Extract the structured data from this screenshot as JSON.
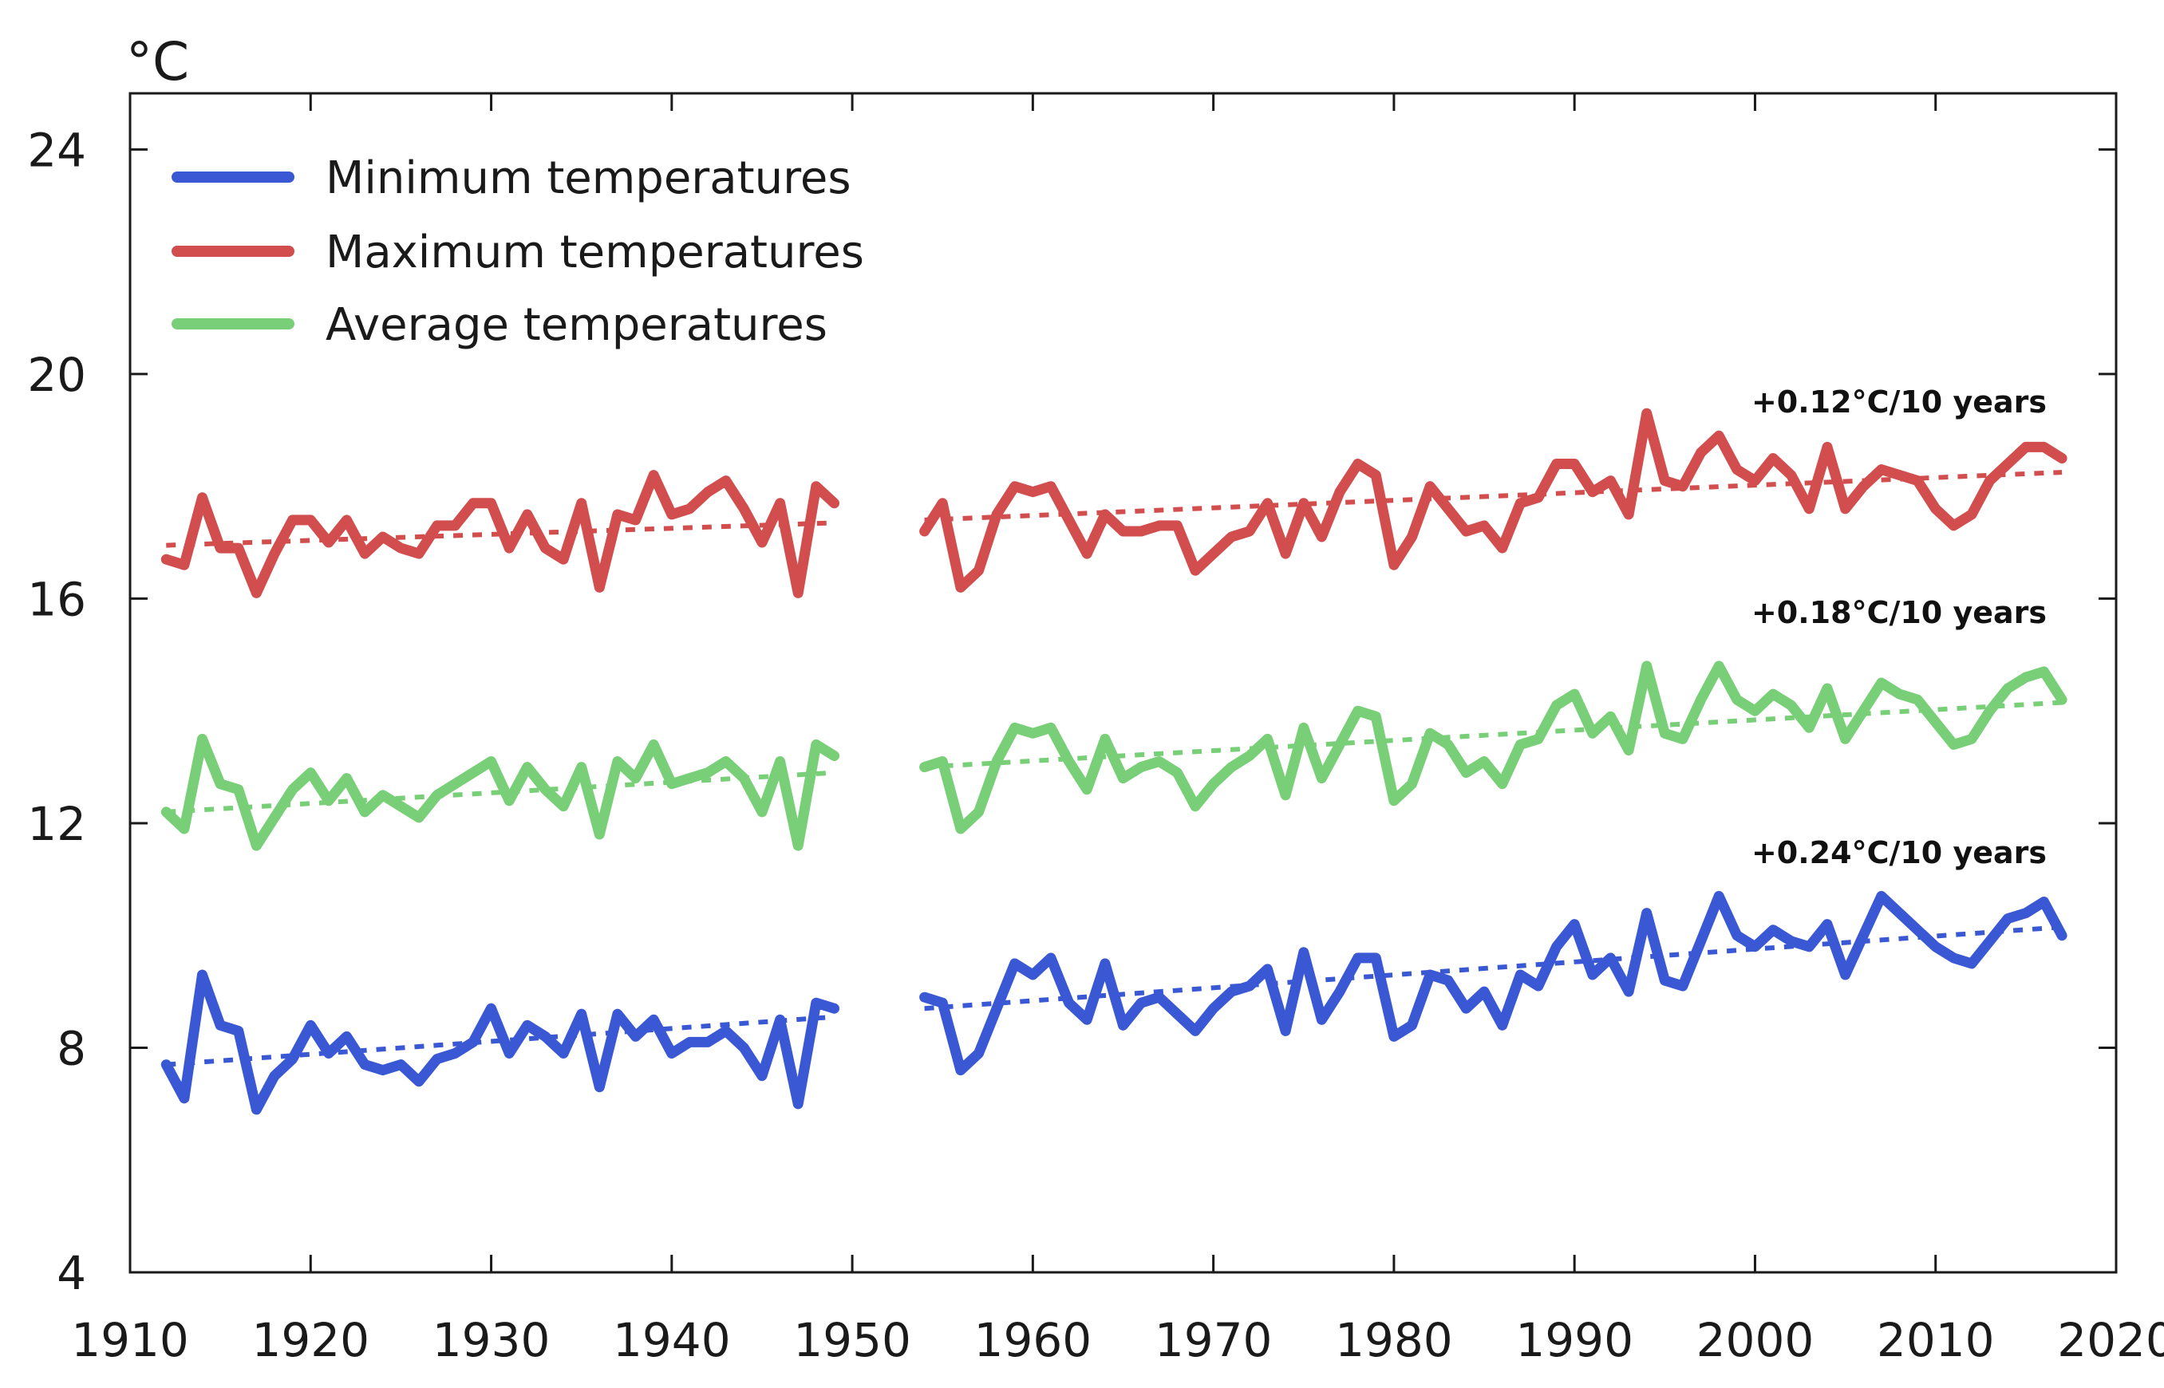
{
  "chart_data": {
    "type": "line",
    "title": "",
    "xlabel": "",
    "ylabel": "°C",
    "xlim": [
      1910,
      2020
    ],
    "ylim": [
      4,
      25
    ],
    "x_ticks": [
      1910,
      1920,
      1930,
      1940,
      1950,
      1960,
      1970,
      1980,
      1990,
      2000,
      2010,
      2020
    ],
    "y_ticks": [
      4,
      8,
      12,
      16,
      20,
      24
    ],
    "grid": false,
    "legend_position": "top-left",
    "colors": {
      "min": "#3a58d4",
      "max": "#d24d4d",
      "avg": "#78cf78"
    },
    "series": [
      {
        "key": "min",
        "name": "Minimum temperatures",
        "trend_label": "+0.24°C/10 years",
        "trend": [
          [
            1912,
            7.7
          ],
          [
            1949,
            8.55
          ],
          [
            1954,
            8.7
          ],
          [
            2017,
            10.15
          ]
        ],
        "segments": [
          {
            "x": [
              1912,
              1913,
              1914,
              1915,
              1916,
              1917,
              1918,
              1919,
              1920,
              1921,
              1922,
              1923,
              1924,
              1925,
              1926,
              1927,
              1928,
              1929,
              1930,
              1931,
              1932,
              1933,
              1934,
              1935,
              1936,
              1937,
              1938,
              1939,
              1940,
              1941,
              1942,
              1943,
              1944,
              1945,
              1946,
              1947,
              1948,
              1949
            ],
            "values": [
              7.7,
              7.1,
              9.3,
              8.4,
              8.3,
              6.9,
              7.5,
              7.8,
              8.4,
              7.9,
              8.2,
              7.7,
              7.6,
              7.7,
              7.4,
              7.8,
              7.9,
              8.1,
              8.7,
              7.9,
              8.4,
              8.2,
              7.9,
              8.6,
              7.3,
              8.6,
              8.2,
              8.5,
              7.9,
              8.1,
              8.1,
              8.3,
              8.0,
              7.5,
              8.5,
              7.0,
              8.8,
              8.7
            ]
          },
          {
            "x": [
              1954,
              1955,
              1956,
              1957,
              1958,
              1959,
              1960,
              1961,
              1962,
              1963,
              1964,
              1965,
              1966,
              1967,
              1968,
              1969,
              1970,
              1971,
              1972,
              1973,
              1974,
              1975,
              1976,
              1977,
              1978,
              1979,
              1980,
              1981,
              1982,
              1983,
              1984,
              1985,
              1986,
              1987,
              1988,
              1989,
              1990,
              1991,
              1992,
              1993,
              1994,
              1995,
              1996,
              1997,
              1998,
              1999,
              2000,
              2001,
              2002,
              2003,
              2004,
              2005,
              2006,
              2007,
              2008,
              2009,
              2010,
              2011,
              2012,
              2013,
              2014,
              2015,
              2016,
              2017
            ],
            "values": [
              8.9,
              8.8,
              7.6,
              7.9,
              8.7,
              9.5,
              9.3,
              9.6,
              8.8,
              8.5,
              9.5,
              8.4,
              8.8,
              8.9,
              8.6,
              8.3,
              8.7,
              9.0,
              9.1,
              9.4,
              8.3,
              9.7,
              8.5,
              9.0,
              9.6,
              9.6,
              8.2,
              8.4,
              9.3,
              9.2,
              8.7,
              9.0,
              8.4,
              9.3,
              9.1,
              9.8,
              10.2,
              9.3,
              9.6,
              9.0,
              10.4,
              9.2,
              9.1,
              9.9,
              10.7,
              10.0,
              9.8,
              10.1,
              9.9,
              9.8,
              10.2,
              9.3,
              10.0,
              10.7,
              10.4,
              10.1,
              9.8,
              9.6,
              9.5,
              9.9,
              10.3,
              10.4,
              10.6,
              10.0
            ]
          }
        ]
      },
      {
        "key": "max",
        "name": "Maximum temperatures",
        "trend_label": "+0.12°C/10 years",
        "trend": [
          [
            1912,
            16.95
          ],
          [
            1949,
            17.35
          ],
          [
            1954,
            17.4
          ],
          [
            2017,
            18.25
          ]
        ],
        "segments": [
          {
            "x": [
              1912,
              1913,
              1914,
              1915,
              1916,
              1917,
              1918,
              1919,
              1920,
              1921,
              1922,
              1923,
              1924,
              1925,
              1926,
              1927,
              1928,
              1929,
              1930,
              1931,
              1932,
              1933,
              1934,
              1935,
              1936,
              1937,
              1938,
              1939,
              1940,
              1941,
              1942,
              1943,
              1944,
              1945,
              1946,
              1947,
              1948,
              1949
            ],
            "values": [
              16.7,
              16.6,
              17.8,
              16.9,
              16.9,
              16.1,
              16.8,
              17.4,
              17.4,
              17.0,
              17.4,
              16.8,
              17.1,
              16.9,
              16.8,
              17.3,
              17.3,
              17.7,
              17.7,
              16.9,
              17.5,
              16.9,
              16.7,
              17.7,
              16.2,
              17.5,
              17.4,
              18.2,
              17.5,
              17.6,
              17.9,
              18.1,
              17.6,
              17.0,
              17.7,
              16.1,
              18.0,
              17.7
            ]
          },
          {
            "x": [
              1954,
              1955,
              1956,
              1957,
              1958,
              1959,
              1960,
              1961,
              1962,
              1963,
              1964,
              1965,
              1966,
              1967,
              1968,
              1969,
              1970,
              1971,
              1972,
              1973,
              1974,
              1975,
              1976,
              1977,
              1978,
              1979,
              1980,
              1981,
              1982,
              1983,
              1984,
              1985,
              1986,
              1987,
              1988,
              1989,
              1990,
              1991,
              1992,
              1993,
              1994,
              1995,
              1996,
              1997,
              1998,
              1999,
              2000,
              2001,
              2002,
              2003,
              2004,
              2005,
              2006,
              2007,
              2008,
              2009,
              2010,
              2011,
              2012,
              2013,
              2014,
              2015,
              2016,
              2017
            ],
            "values": [
              17.2,
              17.7,
              16.2,
              16.5,
              17.5,
              18.0,
              17.9,
              18.0,
              17.4,
              16.8,
              17.5,
              17.2,
              17.2,
              17.3,
              17.3,
              16.5,
              16.8,
              17.1,
              17.2,
              17.7,
              16.8,
              17.7,
              17.1,
              17.9,
              18.4,
              18.2,
              16.6,
              17.1,
              18.0,
              17.6,
              17.2,
              17.3,
              16.9,
              17.7,
              17.8,
              18.4,
              18.4,
              17.9,
              18.1,
              17.5,
              19.3,
              18.1,
              18.0,
              18.6,
              18.9,
              18.3,
              18.1,
              18.5,
              18.2,
              17.6,
              18.7,
              17.6,
              18.0,
              18.3,
              18.2,
              18.1,
              17.6,
              17.3,
              17.5,
              18.1,
              18.4,
              18.7,
              18.7,
              18.5
            ]
          }
        ]
      },
      {
        "key": "avg",
        "name": "Average temperatures",
        "trend_label": "+0.18°C/10 years",
        "trend": [
          [
            1912,
            12.2
          ],
          [
            1949,
            12.9
          ],
          [
            1954,
            13.0
          ],
          [
            2017,
            14.15
          ]
        ],
        "segments": [
          {
            "x": [
              1912,
              1913,
              1914,
              1915,
              1916,
              1917,
              1918,
              1919,
              1920,
              1921,
              1922,
              1923,
              1924,
              1925,
              1926,
              1927,
              1928,
              1929,
              1930,
              1931,
              1932,
              1933,
              1934,
              1935,
              1936,
              1937,
              1938,
              1939,
              1940,
              1941,
              1942,
              1943,
              1944,
              1945,
              1946,
              1947,
              1948,
              1949
            ],
            "values": [
              12.2,
              11.9,
              13.5,
              12.7,
              12.6,
              11.6,
              12.1,
              12.6,
              12.9,
              12.4,
              12.8,
              12.2,
              12.5,
              12.3,
              12.1,
              12.5,
              12.7,
              12.9,
              13.1,
              12.4,
              13.0,
              12.6,
              12.3,
              13.0,
              11.8,
              13.1,
              12.8,
              13.4,
              12.7,
              12.8,
              12.9,
              13.1,
              12.8,
              12.2,
              13.1,
              11.6,
              13.4,
              13.2
            ]
          },
          {
            "x": [
              1954,
              1955,
              1956,
              1957,
              1958,
              1959,
              1960,
              1961,
              1962,
              1963,
              1964,
              1965,
              1966,
              1967,
              1968,
              1969,
              1970,
              1971,
              1972,
              1973,
              1974,
              1975,
              1976,
              1977,
              1978,
              1979,
              1980,
              1981,
              1982,
              1983,
              1984,
              1985,
              1986,
              1987,
              1988,
              1989,
              1990,
              1991,
              1992,
              1993,
              1994,
              1995,
              1996,
              1997,
              1998,
              1999,
              2000,
              2001,
              2002,
              2003,
              2004,
              2005,
              2006,
              2007,
              2008,
              2009,
              2010,
              2011,
              2012,
              2013,
              2014,
              2015,
              2016,
              2017
            ],
            "values": [
              13.0,
              13.1,
              11.9,
              12.2,
              13.1,
              13.7,
              13.6,
              13.7,
              13.1,
              12.6,
              13.5,
              12.8,
              13.0,
              13.1,
              12.9,
              12.3,
              12.7,
              13.0,
              13.2,
              13.5,
              12.5,
              13.7,
              12.8,
              13.4,
              14.0,
              13.9,
              12.4,
              12.7,
              13.6,
              13.4,
              12.9,
              13.1,
              12.7,
              13.4,
              13.5,
              14.1,
              14.3,
              13.6,
              13.9,
              13.3,
              14.8,
              13.6,
              13.5,
              14.2,
              14.8,
              14.2,
              14.0,
              14.3,
              14.1,
              13.7,
              14.4,
              13.5,
              14.0,
              14.5,
              14.3,
              14.2,
              13.8,
              13.4,
              13.5,
              14.0,
              14.4,
              14.6,
              14.7,
              14.2
            ]
          }
        ]
      }
    ]
  }
}
